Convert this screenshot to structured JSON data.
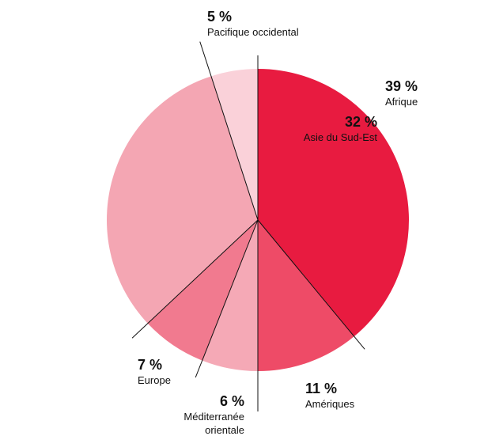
{
  "chart_data": {
    "type": "pie",
    "categories": [
      "Afrique",
      "Amériques",
      "Méditerranée orientale",
      "Europe",
      "Asie du Sud-Est",
      "Pacifique occidental"
    ],
    "values": [
      39,
      11,
      6,
      7,
      32,
      5
    ],
    "value_labels": [
      "39 %",
      "11 %",
      "6 %",
      "7 %",
      "32 %",
      "5 %"
    ],
    "colors": [
      "#e81b40",
      "#ee4b67",
      "#f5a9b6",
      "#f17a8f",
      "#f4a6b3",
      "#fad1d9"
    ]
  }
}
